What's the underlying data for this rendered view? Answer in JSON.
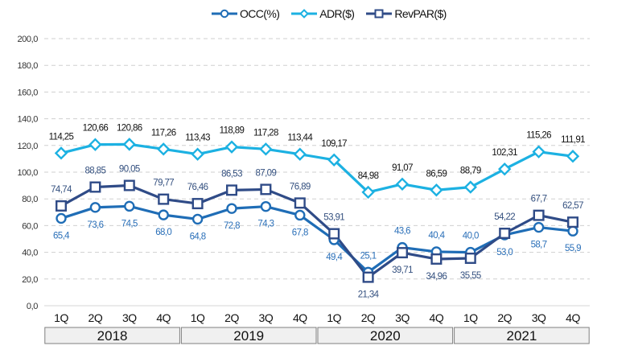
{
  "chart_data": {
    "type": "line",
    "title": "",
    "xlabel": "",
    "ylabel": "",
    "ylim": [
      0,
      200
    ],
    "y_ticks": [
      0,
      20,
      40,
      60,
      80,
      100,
      120,
      140,
      160,
      180,
      200
    ],
    "y_tick_labels": [
      "0,0",
      "20,0",
      "40,0",
      "60,0",
      "80,0",
      "100,0",
      "120,0",
      "140,0",
      "160,0",
      "180,0",
      "200,0"
    ],
    "grid": "horizontal-dashed",
    "legend_position": "top-center",
    "categories": [
      "1Q",
      "2Q",
      "3Q",
      "4Q",
      "1Q",
      "2Q",
      "3Q",
      "4Q",
      "1Q",
      "2Q",
      "3Q",
      "4Q",
      "1Q",
      "2Q",
      "3Q",
      "4Q"
    ],
    "year_groups": [
      {
        "label": "2018",
        "quarters": 4
      },
      {
        "label": "2019",
        "quarters": 4
      },
      {
        "label": "2020",
        "quarters": 4
      },
      {
        "label": "2021",
        "quarters": 4
      }
    ],
    "series": [
      {
        "key": "occ",
        "name": "OCC(%)",
        "marker": "circle",
        "color": "#1f6db6",
        "label_color": "#2a6fb8",
        "values": [
          65.4,
          73.6,
          74.5,
          68.0,
          64.8,
          72.8,
          74.3,
          67.8,
          49.4,
          25.1,
          43.6,
          40.4,
          40.0,
          53.0,
          58.7,
          55.9
        ],
        "labels": [
          "65,4",
          "73,6",
          "74,5",
          "68,0",
          "64,8",
          "72,8",
          "74,3",
          "67,8",
          "49,4",
          "25,1",
          "43,6",
          "40,4",
          "40,0",
          "53,0",
          "58,7",
          "55,9"
        ]
      },
      {
        "key": "adr",
        "name": "ADR($)",
        "marker": "diamond",
        "color": "#1cb1e2",
        "label_color": "#111111",
        "values": [
          114.25,
          120.66,
          120.86,
          117.26,
          113.43,
          118.89,
          117.28,
          113.44,
          109.17,
          84.98,
          91.07,
          86.59,
          88.79,
          102.31,
          115.26,
          111.91
        ],
        "labels": [
          "114,25",
          "120,66",
          "120,86",
          "117,26",
          "113,43",
          "118,89",
          "117,28",
          "113,44",
          "109,17",
          "84,98",
          "91,07",
          "86,59",
          "88,79",
          "102,31",
          "115,26",
          "111,91"
        ]
      },
      {
        "key": "revpar",
        "name": "RevPAR($)",
        "marker": "square",
        "color": "#2f4b87",
        "label_color": "#34507f",
        "values": [
          74.74,
          88.85,
          90.05,
          79.77,
          76.46,
          86.53,
          87.09,
          76.89,
          53.91,
          21.34,
          39.71,
          34.96,
          35.55,
          54.22,
          67.7,
          62.57
        ],
        "labels": [
          "74,74",
          "88,85",
          "90,05",
          "79,77",
          "76,46",
          "86,53",
          "87,09",
          "76,89",
          "53,91",
          "21,34",
          "39,71",
          "34,96",
          "35,55",
          "54,22",
          "67,7",
          "62,57"
        ]
      }
    ]
  }
}
